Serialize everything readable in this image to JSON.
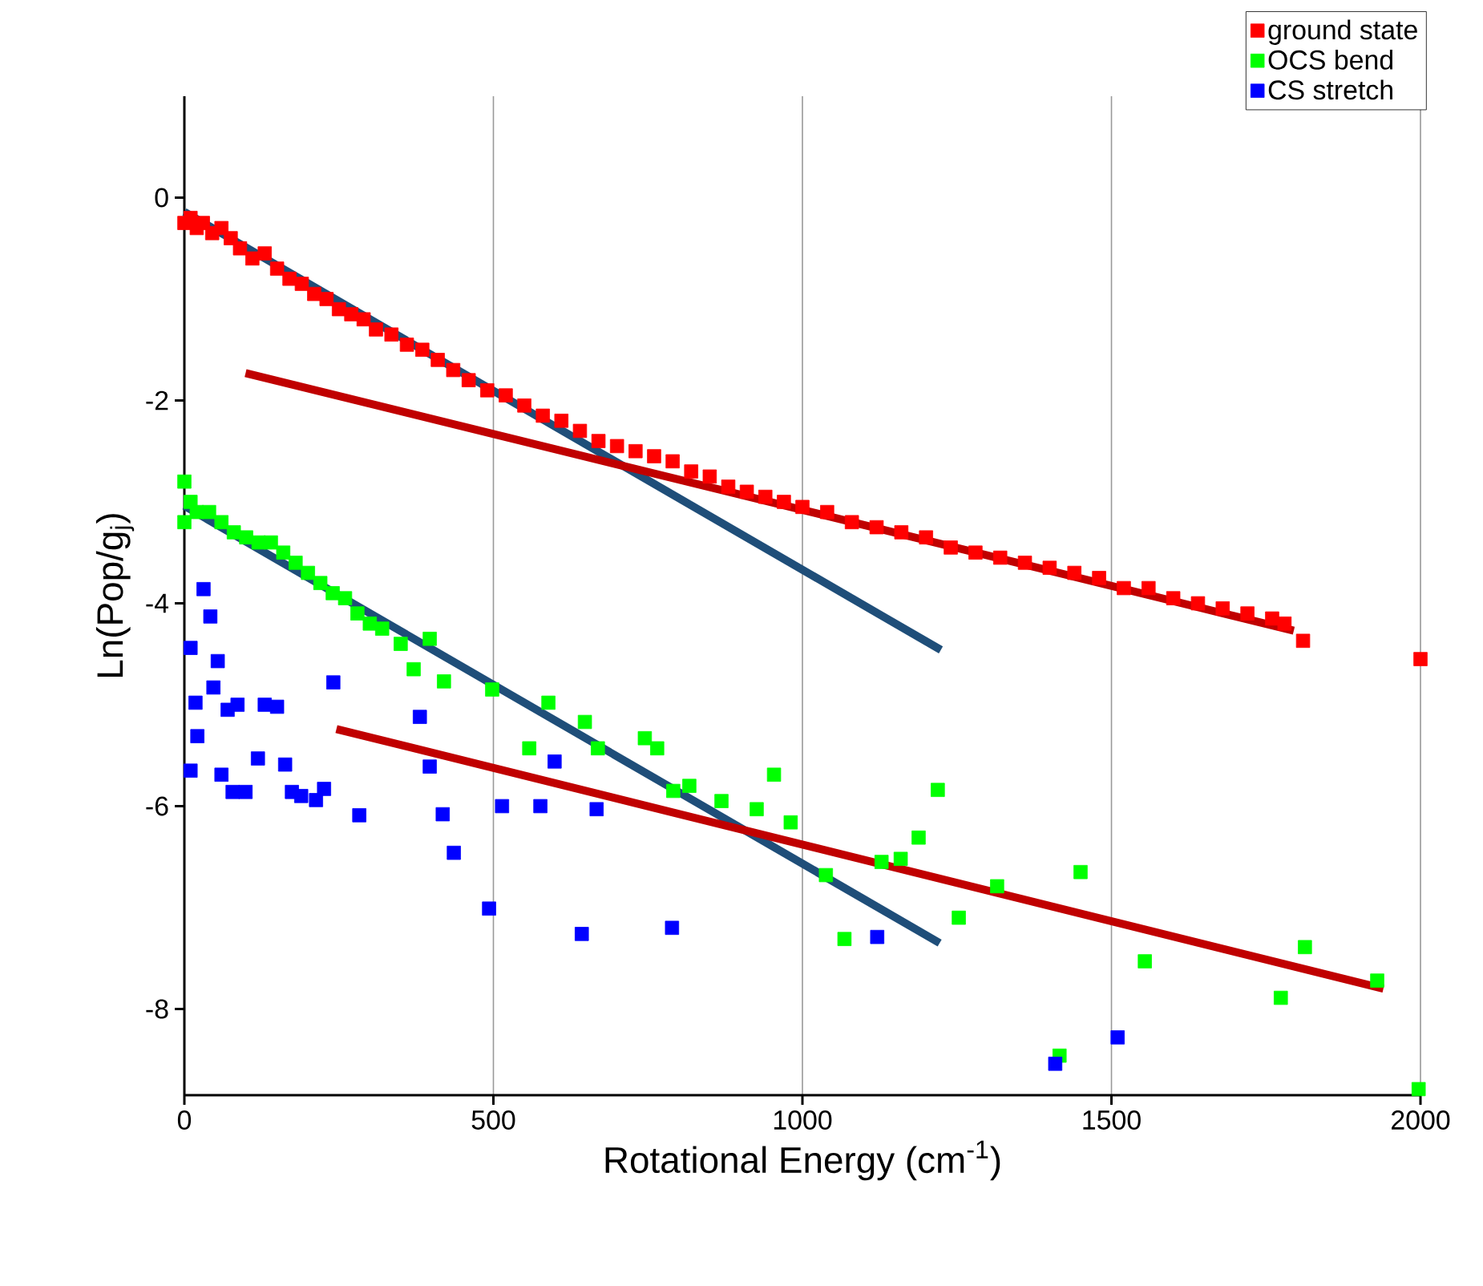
{
  "chart_data": {
    "type": "scatter",
    "xlabel": "Rotational Energy (cm$^{-1}$)",
    "ylabel": "Ln(Pop/g$_{j}$)",
    "xlim": [
      0,
      2000
    ],
    "ylim": [
      -8.85,
      1
    ],
    "xticks": [
      0,
      500,
      1000,
      1500,
      2000
    ],
    "yticks": [
      0,
      -2,
      -4,
      -6,
      -8
    ],
    "grid": "x",
    "legend": "top right",
    "marker": "square",
    "series": [
      {
        "name": "ground state",
        "color": "#ff0000",
        "x": [
          0,
          10,
          20,
          30,
          45,
          60,
          75,
          90,
          110,
          130,
          150,
          170,
          190,
          210,
          230,
          250,
          270,
          290,
          310,
          335,
          360,
          385,
          410,
          435,
          460,
          490,
          520,
          550,
          580,
          610,
          640,
          670,
          700,
          730,
          760,
          790,
          820,
          850,
          880,
          910,
          940,
          970,
          1000,
          1040,
          1080,
          1120,
          1160,
          1200,
          1240,
          1280,
          1320,
          1360,
          1400,
          1440,
          1480,
          1520,
          1560,
          1600,
          1640,
          1680,
          1720,
          1760,
          1780,
          1810,
          2000
        ],
        "values": [
          -0.25,
          -0.2,
          -0.3,
          -0.25,
          -0.35,
          -0.3,
          -0.4,
          -0.5,
          -0.6,
          -0.55,
          -0.7,
          -0.8,
          -0.85,
          -0.95,
          -1.0,
          -1.1,
          -1.15,
          -1.2,
          -1.3,
          -1.35,
          -1.45,
          -1.5,
          -1.6,
          -1.7,
          -1.8,
          -1.9,
          -1.95,
          -2.05,
          -2.15,
          -2.2,
          -2.3,
          -2.4,
          -2.45,
          -2.5,
          -2.55,
          -2.6,
          -2.7,
          -2.75,
          -2.85,
          -2.9,
          -2.95,
          -3.0,
          -3.05,
          -3.1,
          -3.2,
          -3.25,
          -3.3,
          -3.35,
          -3.45,
          -3.5,
          -3.55,
          -3.6,
          -3.65,
          -3.7,
          -3.75,
          -3.85,
          -3.85,
          -3.95,
          -4.0,
          -4.05,
          -4.1,
          -4.15,
          -4.2,
          -4.37,
          -4.55
        ]
      },
      {
        "name": "OCS bend",
        "color": "#00ff00",
        "x": [
          0,
          0,
          10,
          20,
          40,
          60,
          80,
          100,
          120,
          140,
          160,
          180,
          200,
          220,
          240,
          260,
          280,
          300,
          320,
          350,
          371,
          397,
          420,
          498,
          558,
          589,
          648,
          669,
          745,
          765,
          791,
          817,
          869,
          926,
          954,
          981,
          1038,
          1068,
          1128,
          1159,
          1188,
          1219,
          1253,
          1315,
          1416,
          1450,
          1554,
          1774,
          1813,
          1930,
          1997
        ],
        "values": [
          -2.8,
          -3.2,
          -3.0,
          -3.1,
          -3.1,
          -3.2,
          -3.3,
          -3.35,
          -3.4,
          -3.4,
          -3.5,
          -3.6,
          -3.7,
          -3.8,
          -3.9,
          -3.95,
          -4.1,
          -4.2,
          -4.25,
          -4.4,
          -4.65,
          -4.35,
          -4.77,
          -4.85,
          -5.43,
          -4.98,
          -5.17,
          -5.43,
          -5.33,
          -5.43,
          -5.85,
          -5.8,
          -5.95,
          -6.03,
          -5.69,
          -6.16,
          -6.68,
          -7.31,
          -6.55,
          -6.52,
          -6.31,
          -5.84,
          -7.1,
          -6.79,
          -8.46,
          -6.65,
          -7.53,
          -7.89,
          -7.39,
          -7.72,
          -8.79
        ]
      },
      {
        "name": "CS stretch",
        "color": "#0000ff",
        "x": [
          31,
          42,
          10,
          54,
          47,
          18,
          70,
          86,
          130,
          150,
          241,
          21,
          10,
          60,
          78,
          99,
          119,
          163,
          174,
          189,
          213,
          226,
          283,
          381,
          397,
          418,
          436,
          493,
          514,
          576,
          599,
          643,
          667,
          789,
          1121,
          1409,
          1510
        ],
        "values": [
          -3.86,
          -4.13,
          -4.44,
          -4.57,
          -4.83,
          -4.98,
          -5.05,
          -5.0,
          -5.0,
          -5.02,
          -4.78,
          -5.31,
          -5.65,
          -5.69,
          -5.86,
          -5.86,
          -5.53,
          -5.59,
          -5.86,
          -5.9,
          -5.94,
          -5.83,
          -6.09,
          -5.12,
          -5.61,
          -6.08,
          -6.46,
          -7.01,
          -6.0,
          -6.0,
          -5.56,
          -7.26,
          -6.03,
          -7.2,
          -7.29,
          -8.54,
          -8.28
        ]
      },
      {
        "type": "line",
        "marker": "none",
        "color": "#1f4e79",
        "x": [
          0,
          1224
        ],
        "values": [
          -0.14,
          -4.46
        ]
      },
      {
        "type": "line",
        "marker": "none",
        "color": "#1f4e79",
        "x": [
          0,
          1222
        ],
        "values": [
          -3.04,
          -7.35
        ]
      },
      {
        "type": "line",
        "marker": "none",
        "color": "#c00000",
        "x": [
          99,
          1795
        ],
        "values": [
          -1.73,
          -4.27
        ]
      },
      {
        "type": "line",
        "marker": "none",
        "color": "#c00000",
        "x": [
          246,
          1940
        ],
        "values": [
          -5.24,
          -7.8
        ]
      }
    ]
  }
}
